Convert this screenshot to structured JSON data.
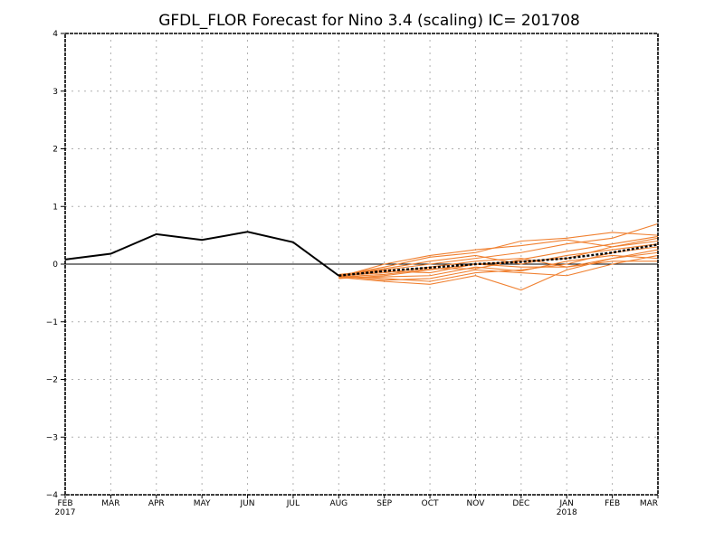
{
  "chart_data": {
    "type": "line",
    "title": "GFDL_FLOR Forecast for Nino 3.4 (scaling) IC= 201708",
    "xlabel": "",
    "ylabel": "",
    "ylim": [
      -4,
      4
    ],
    "yticks": [
      "4",
      "3",
      "2",
      "1",
      "0",
      "−1",
      "−2",
      "−3",
      "−4"
    ],
    "yticks_values": [
      4,
      3,
      2,
      1,
      0,
      -1,
      -2,
      -3,
      -4
    ],
    "categories": [
      "FEB",
      "MAR",
      "APR",
      "MAY",
      "JUN",
      "JUL",
      "AUG",
      "SEP",
      "OCT",
      "NOV",
      "DEC",
      "JAN",
      "FEB",
      "MAR"
    ],
    "year_labels": [
      {
        "index": 0,
        "label": "2017"
      },
      {
        "index": 11,
        "label": "2018"
      }
    ],
    "grid": true,
    "zero_line": true,
    "colors": {
      "observed": "#000000",
      "members": "#f08030",
      "ensemble_mean": "#000000",
      "grid": "#b0b0b0"
    },
    "observed": {
      "x_index": [
        0,
        1,
        2,
        3,
        4,
        5,
        6
      ],
      "values": [
        0.08,
        0.18,
        0.52,
        0.42,
        0.56,
        0.38,
        -0.2
      ]
    },
    "ensemble_mean": {
      "x_index": [
        6,
        7,
        8,
        9,
        10,
        11,
        12,
        13
      ],
      "values": [
        -0.2,
        -0.12,
        -0.06,
        0.0,
        0.04,
        0.1,
        0.2,
        0.34
      ]
    },
    "members": [
      {
        "values": [
          -0.2,
          -0.05,
          0.12,
          0.2,
          0.4,
          0.45,
          0.55,
          0.5
        ]
      },
      {
        "values": [
          -0.22,
          0.0,
          0.15,
          0.25,
          0.32,
          0.42,
          0.3,
          0.45
        ]
      },
      {
        "values": [
          -0.18,
          -0.1,
          0.0,
          0.1,
          0.2,
          0.35,
          0.45,
          0.7
        ]
      },
      {
        "values": [
          -0.25,
          -0.2,
          -0.1,
          0.0,
          0.05,
          0.1,
          0.3,
          0.4
        ]
      },
      {
        "values": [
          -0.2,
          -0.25,
          -0.3,
          -0.15,
          -0.1,
          0.0,
          0.2,
          0.3
        ]
      },
      {
        "values": [
          -0.23,
          -0.3,
          -0.35,
          -0.2,
          -0.45,
          -0.1,
          0.1,
          0.2
        ]
      },
      {
        "values": [
          -0.2,
          -0.15,
          -0.05,
          0.05,
          0.1,
          -0.05,
          0.1,
          0.25
        ]
      },
      {
        "values": [
          -0.21,
          -0.28,
          -0.25,
          -0.1,
          -0.15,
          -0.2,
          0.0,
          0.15
        ]
      },
      {
        "values": [
          -0.19,
          -0.08,
          0.05,
          0.15,
          0.0,
          0.15,
          0.25,
          0.35
        ]
      },
      {
        "values": [
          -0.24,
          -0.22,
          -0.2,
          -0.05,
          -0.12,
          0.05,
          0.15,
          0.1
        ]
      },
      {
        "values": [
          -0.2,
          -0.12,
          -0.15,
          0.0,
          -0.05,
          -0.05,
          0.05,
          0.05
        ]
      },
      {
        "values": [
          -0.22,
          -0.18,
          -0.08,
          -0.08,
          0.08,
          0.22,
          0.35,
          0.48
        ]
      }
    ]
  }
}
